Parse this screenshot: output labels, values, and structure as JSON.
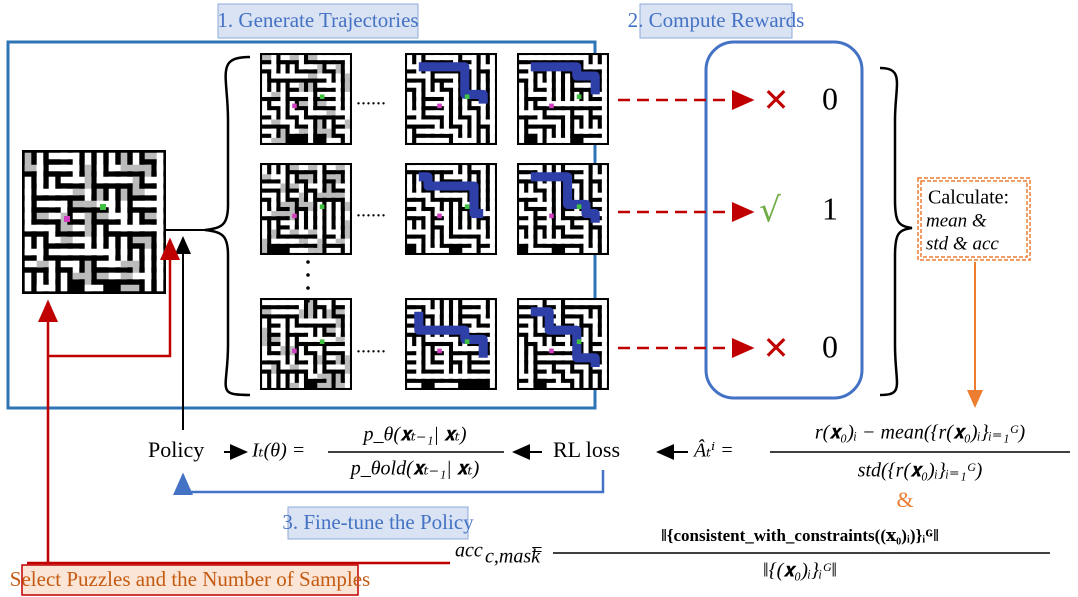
{
  "stages": [
    "1. Generate Trajectories",
    "2. Compute Rewards",
    "3. Fine-tune the Policy"
  ],
  "select_label": "Select Puzzles and the Number of Samples",
  "ellipsis": "......",
  "rewards": [
    {
      "mark": "✕",
      "value": "0"
    },
    {
      "mark": "√",
      "value": "1"
    },
    {
      "mark": "✕",
      "value": "0"
    }
  ],
  "calculate": {
    "title": "Calculate:",
    "lines": [
      "mean &",
      "std & acc"
    ]
  },
  "policy": "Policy",
  "rl_loss": "RL loss",
  "ratio": {
    "lhs": "Iₜ(θ) =",
    "num": "p_θ(𝐱ₜ₋₁| 𝐱ₜ)",
    "den": "p_θold(𝐱ₜ₋₁| 𝐱ₜ)"
  },
  "advantage": {
    "lhs": "Âₜⁱ =",
    "num": "r(𝐱₀)ᵢ − mean({r(𝐱₀)ᵢ}ᵢ₌₁ᴳ)",
    "den": "std({r(𝐱₀)ᵢ}ᵢ₌₁ᴳ)"
  },
  "amp": "&",
  "acc": {
    "lhs": "acc",
    "sub": "c,mask",
    "eq": "=",
    "num": "‖{consistent_with_constraints((𝐱₀)ᵢ)}ᵢᴳ‖",
    "den": "‖{(𝐱₀)ᵢ}ᵢᴳ‖"
  }
}
